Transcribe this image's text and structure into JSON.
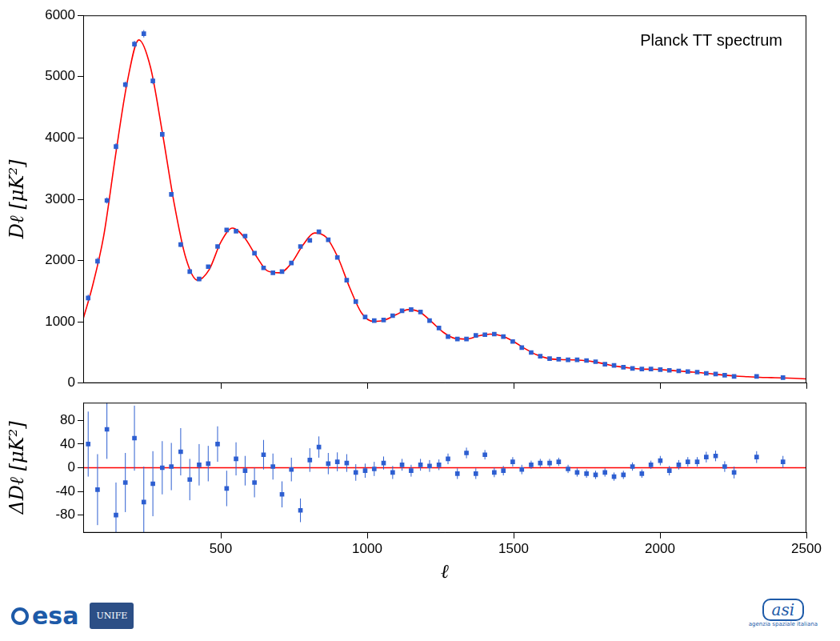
{
  "chart_data": [
    {
      "type": "scatter",
      "annotation": "Planck TT spectrum",
      "y_label": "Dℓ [μK²]",
      "xlim": [
        30,
        2500
      ],
      "xticks": [
        500,
        1000,
        1500,
        2000,
        2500
      ],
      "ylim": [
        0,
        6000
      ],
      "yticks": [
        0,
        1000,
        2000,
        3000,
        4000,
        5000,
        6000
      ],
      "grid": false,
      "tick_labels": "y",
      "series": [
        {
          "type": "scatter",
          "color": "#2e5fd1",
          "marker": "square",
          "x": [
            47,
            79,
            111,
            142,
            174,
            205,
            237,
            268,
            300,
            331,
            363,
            394,
            426,
            457,
            489,
            520,
            552,
            583,
            615,
            646,
            678,
            709,
            741,
            772,
            804,
            835,
            867,
            898,
            930,
            961,
            993,
            1024,
            1056,
            1087,
            1119,
            1150,
            1182,
            1213,
            1245,
            1276,
            1308,
            1339,
            1371,
            1402,
            1434,
            1465,
            1497,
            1528,
            1560,
            1591,
            1623,
            1654,
            1686,
            1717,
            1749,
            1780,
            1812,
            1843,
            1875,
            1906,
            1938,
            1969,
            2001,
            2032,
            2064,
            2095,
            2127,
            2158,
            2190,
            2221,
            2253,
            2330,
            2420
          ],
          "values": [
            1390,
            1990,
            2980,
            3860,
            4870,
            5530,
            5700,
            4930,
            4060,
            3080,
            2260,
            1820,
            1700,
            1900,
            2230,
            2500,
            2480,
            2400,
            2120,
            1880,
            1800,
            1820,
            1960,
            2230,
            2330,
            2470,
            2340,
            2050,
            1680,
            1330,
            1080,
            1020,
            1030,
            1100,
            1180,
            1200,
            1160,
            1020,
            900,
            760,
            720,
            720,
            780,
            790,
            800,
            760,
            680,
            580,
            500,
            440,
            400,
            390,
            380,
            380,
            370,
            350,
            310,
            290,
            260,
            240,
            230,
            230,
            220,
            210,
            200,
            190,
            180,
            160,
            150,
            130,
            110,
            110,
            90
          ],
          "errors": [
            55,
            60,
            50,
            55,
            50,
            55,
            60,
            55,
            45,
            40,
            40,
            35,
            35,
            30,
            30,
            30,
            28,
            25,
            25,
            25,
            22,
            22,
            20,
            20,
            20,
            18,
            18,
            16,
            15,
            14,
            12,
            12,
            11,
            11,
            10,
            10,
            10,
            10,
            9,
            9,
            9,
            9,
            9,
            8,
            8,
            8,
            8,
            8,
            7,
            7,
            7,
            7,
            7,
            7,
            7,
            7,
            7,
            7,
            7,
            7,
            7,
            7,
            8,
            8,
            8,
            8,
            8,
            9,
            9,
            9,
            10,
            10,
            10
          ]
        },
        {
          "type": "line",
          "color": "#ff0000",
          "line_style": "solid",
          "x": [
            30,
            60,
            100,
            140,
            180,
            220,
            260,
            300,
            340,
            380,
            420,
            460,
            500,
            540,
            580,
            620,
            660,
            700,
            740,
            780,
            820,
            860,
            900,
            940,
            980,
            1020,
            1060,
            1100,
            1140,
            1180,
            1220,
            1260,
            1300,
            1340,
            1380,
            1420,
            1460,
            1500,
            1540,
            1580,
            1620,
            1660,
            1700,
            1740,
            1780,
            1820,
            1860,
            1900,
            1940,
            1980,
            2020,
            2060,
            2100,
            2140,
            2180,
            2220,
            2260,
            2300,
            2340,
            2380,
            2420,
            2460,
            2500
          ],
          "values": [
            1050,
            1550,
            2400,
            3700,
            4900,
            5600,
            5150,
            4100,
            2950,
            2050,
            1680,
            1850,
            2300,
            2530,
            2380,
            2080,
            1830,
            1800,
            1950,
            2250,
            2450,
            2380,
            2050,
            1560,
            1150,
            1010,
            1030,
            1120,
            1200,
            1160,
            1000,
            830,
            730,
            720,
            770,
            800,
            770,
            680,
            560,
            460,
            400,
            385,
            380,
            370,
            345,
            305,
            270,
            245,
            230,
            225,
            215,
            200,
            185,
            170,
            150,
            130,
            115,
            105,
            95,
            90,
            85,
            78,
            70
          ]
        }
      ]
    },
    {
      "type": "scatter",
      "y_label": "ΔDℓ [μK²]",
      "x_label": "ℓ",
      "xlim": [
        30,
        2500
      ],
      "xticks": [
        500,
        1000,
        1500,
        2000,
        2500
      ],
      "ylim": [
        -110,
        110
      ],
      "yticks": [
        -80,
        -40,
        0,
        40,
        80
      ],
      "grid": false,
      "series": [
        {
          "type": "line",
          "color": "#ff0000",
          "line_style": "solid",
          "x": [
            30,
            2500
          ],
          "values": [
            0,
            0
          ]
        },
        {
          "type": "scatter",
          "color": "#2e5fd1",
          "marker": "square",
          "x": [
            47,
            79,
            111,
            142,
            174,
            205,
            237,
            268,
            300,
            331,
            363,
            394,
            426,
            457,
            489,
            520,
            552,
            583,
            615,
            646,
            678,
            709,
            741,
            772,
            804,
            835,
            867,
            898,
            930,
            961,
            993,
            1024,
            1056,
            1087,
            1119,
            1150,
            1182,
            1213,
            1245,
            1276,
            1308,
            1339,
            1371,
            1402,
            1434,
            1465,
            1497,
            1528,
            1560,
            1591,
            1623,
            1654,
            1686,
            1717,
            1749,
            1780,
            1812,
            1843,
            1875,
            1906,
            1938,
            1969,
            2001,
            2032,
            2064,
            2095,
            2127,
            2158,
            2190,
            2221,
            2253,
            2330,
            2420
          ],
          "values": [
            40,
            -37,
            65,
            -80,
            -25,
            50,
            -58,
            -27,
            0,
            2,
            27,
            -20,
            5,
            7,
            40,
            -35,
            15,
            -5,
            -25,
            22,
            2,
            -45,
            -3,
            -72,
            13,
            35,
            7,
            10,
            8,
            -8,
            -5,
            -2,
            8,
            -8,
            5,
            -5,
            5,
            3,
            5,
            15,
            -10,
            25,
            -10,
            22,
            -8,
            -5,
            10,
            -3,
            5,
            8,
            8,
            10,
            -2,
            -8,
            -10,
            -12,
            -8,
            -15,
            -12,
            2,
            -10,
            5,
            12,
            -5,
            5,
            10,
            10,
            18,
            20,
            2,
            -8,
            18,
            10
          ],
          "errors": [
            55,
            60,
            50,
            55,
            50,
            55,
            60,
            55,
            45,
            40,
            40,
            35,
            35,
            30,
            30,
            30,
            28,
            25,
            25,
            25,
            22,
            22,
            20,
            20,
            20,
            18,
            18,
            16,
            15,
            14,
            12,
            12,
            11,
            11,
            10,
            10,
            10,
            10,
            9,
            9,
            9,
            9,
            9,
            8,
            8,
            8,
            8,
            8,
            7,
            7,
            7,
            7,
            7,
            7,
            7,
            7,
            7,
            7,
            7,
            7,
            7,
            7,
            8,
            8,
            8,
            8,
            8,
            9,
            9,
            9,
            10,
            10,
            10
          ]
        }
      ]
    }
  ],
  "footer": {
    "left": [
      "esa",
      "UNIFE"
    ],
    "right": [
      "asi",
      "agenzia spaziale italiana"
    ]
  }
}
